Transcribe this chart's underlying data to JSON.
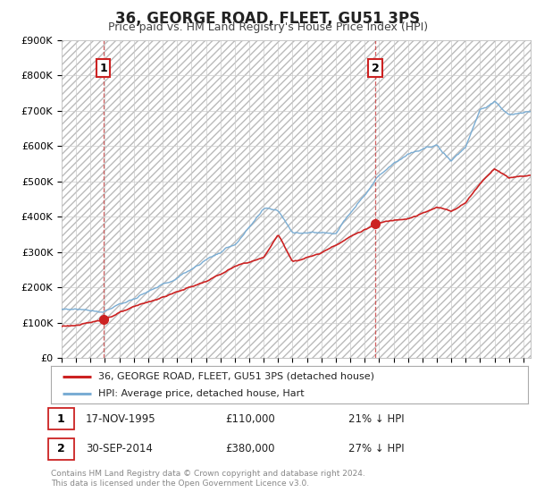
{
  "title": "36, GEORGE ROAD, FLEET, GU51 3PS",
  "subtitle": "Price paid vs. HM Land Registry's House Price Index (HPI)",
  "background_color": "#ffffff",
  "plot_bg_color": "#ffffff",
  "grid_color": "#cccccc",
  "hpi_color": "#7aadd4",
  "price_color": "#cc2222",
  "dashed_vline_color": "#cc4444",
  "ylim": [
    0,
    900000
  ],
  "xlim_start": 1993,
  "xlim_end": 2025.5,
  "sale1_year": 1995.88,
  "sale1_price": 110000,
  "sale2_year": 2014.75,
  "sale2_price": 380000,
  "legend_label1": "36, GEORGE ROAD, FLEET, GU51 3PS (detached house)",
  "legend_label2": "HPI: Average price, detached house, Hart",
  "annotation1_label": "1",
  "annotation2_label": "2",
  "footer": "Contains HM Land Registry data © Crown copyright and database right 2024.\nThis data is licensed under the Open Government Licence v3.0.",
  "yticks": [
    0,
    100000,
    200000,
    300000,
    400000,
    500000,
    600000,
    700000,
    800000,
    900000
  ],
  "ytick_labels": [
    "£0",
    "£100K",
    "£200K",
    "£300K",
    "£400K",
    "£500K",
    "£600K",
    "£700K",
    "£800K",
    "£900K"
  ]
}
